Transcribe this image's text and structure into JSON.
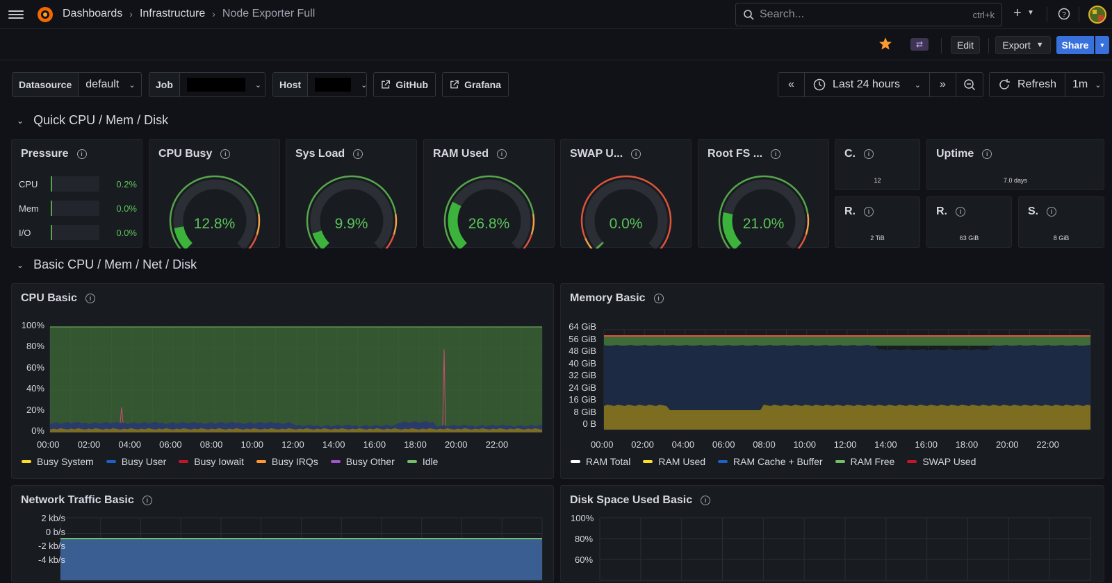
{
  "nav": {
    "breadcrumbs": [
      "Dashboards",
      "Infrastructure",
      "Node Exporter Full"
    ],
    "search_placeholder": "Search...",
    "search_shortcut": "ctrl+k"
  },
  "toolbar": {
    "edit": "Edit",
    "export": "Export",
    "share": "Share"
  },
  "variables": [
    {
      "label": "Datasource",
      "value": "default"
    },
    {
      "label": "Job",
      "value": ""
    },
    {
      "label": "Host",
      "value": ""
    }
  ],
  "links": [
    "GitHub",
    "Grafana"
  ],
  "time": {
    "range": "Last 24 hours",
    "refresh": "Refresh",
    "interval": "1m"
  },
  "sections": [
    "Quick CPU / Mem / Disk",
    "Basic CPU / Mem / Net / Disk"
  ],
  "quick": {
    "pressure": {
      "title": "Pressure",
      "rows": [
        {
          "name": "CPU",
          "value": "0.2%"
        },
        {
          "name": "Mem",
          "value": "0.0%"
        },
        {
          "name": "I/O",
          "value": "0.0%"
        }
      ]
    },
    "gauges": [
      {
        "title": "CPU Busy",
        "value": "12.8%",
        "fraction": 0.128
      },
      {
        "title": "Sys Load",
        "value": "9.9%",
        "fraction": 0.099
      },
      {
        "title": "RAM Used",
        "value": "26.8%",
        "fraction": 0.268
      },
      {
        "title": "SWAP U...",
        "value": "0.0%",
        "fraction": 0.0
      },
      {
        "title": "Root FS ...",
        "value": "21.0%",
        "fraction": 0.21
      }
    ],
    "stats": [
      {
        "title": "C.",
        "value": "12"
      },
      {
        "title": "Uptime",
        "value": "7.0 days"
      },
      {
        "title": "R.",
        "value": "2 TiB"
      },
      {
        "title": "R.",
        "value": "63 GiB"
      },
      {
        "title": "S.",
        "value": "8 GiB"
      }
    ]
  },
  "charts": {
    "cpu": {
      "title": "CPU Basic",
      "yticks": [
        "100%",
        "80%",
        "60%",
        "40%",
        "20%",
        "0%"
      ],
      "xticks": [
        "00:00",
        "02:00",
        "04:00",
        "06:00",
        "08:00",
        "10:00",
        "12:00",
        "14:00",
        "16:00",
        "18:00",
        "20:00",
        "22:00"
      ],
      "legend": [
        {
          "name": "Busy System",
          "color": "#fade2a"
        },
        {
          "name": "Busy User",
          "color": "#1f60c4"
        },
        {
          "name": "Busy Iowait",
          "color": "#c4162a"
        },
        {
          "name": "Busy IRQs",
          "color": "#ff9830"
        },
        {
          "name": "Busy Other",
          "color": "#a352cc"
        },
        {
          "name": "Idle",
          "color": "#73bf69"
        }
      ]
    },
    "memory": {
      "title": "Memory Basic",
      "yticks": [
        "64 GiB",
        "56 GiB",
        "48 GiB",
        "40 GiB",
        "32 GiB",
        "24 GiB",
        "16 GiB",
        "8 GiB",
        "0 B"
      ],
      "xticks": [
        "00:00",
        "02:00",
        "04:00",
        "06:00",
        "08:00",
        "10:00",
        "12:00",
        "14:00",
        "16:00",
        "18:00",
        "20:00",
        "22:00"
      ],
      "legend": [
        {
          "name": "RAM Total",
          "color": "#ffffff"
        },
        {
          "name": "RAM Used",
          "color": "#fade2a"
        },
        {
          "name": "RAM Cache + Buffer",
          "color": "#1f60c4"
        },
        {
          "name": "RAM Free",
          "color": "#73bf69"
        },
        {
          "name": "SWAP Used",
          "color": "#c4162a"
        }
      ]
    },
    "network": {
      "title": "Network Traffic Basic",
      "yticks": [
        "2 kb/s",
        "0 b/s",
        "-2 kb/s",
        "-4 kb/s"
      ]
    },
    "disk": {
      "title": "Disk Space Used Basic",
      "yticks": [
        "100%",
        "80%",
        "60%"
      ]
    }
  }
}
